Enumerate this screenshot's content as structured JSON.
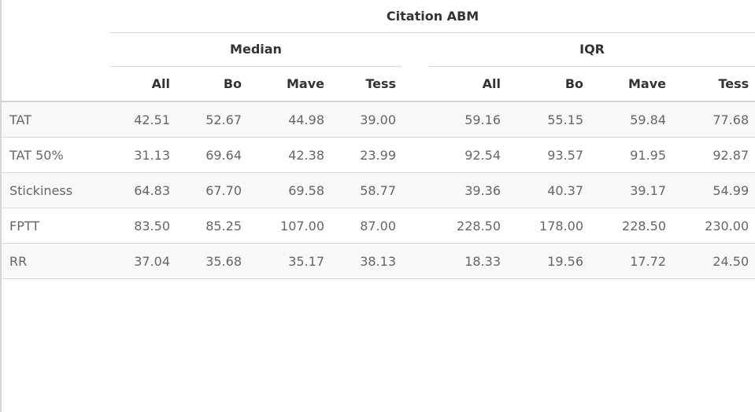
{
  "table": {
    "title": "Citation ABM",
    "groups": {
      "median": "Median",
      "iqr": "IQR"
    },
    "columns": [
      "All",
      "Bo",
      "Mave",
      "Tess",
      "All",
      "Bo",
      "Mave",
      "Tess"
    ],
    "rows": [
      {
        "label": "TAT",
        "values": [
          "42.51",
          "52.67",
          "44.98",
          "39.00",
          "59.16",
          "55.15",
          "59.84",
          "77.68"
        ]
      },
      {
        "label": "TAT 50%",
        "values": [
          "31.13",
          "69.64",
          "42.38",
          "23.99",
          "92.54",
          "93.57",
          "91.95",
          "92.87"
        ]
      },
      {
        "label": "Stickiness",
        "values": [
          "64.83",
          "67.70",
          "69.58",
          "58.77",
          "39.36",
          "40.37",
          "39.17",
          "54.99"
        ]
      },
      {
        "label": "FPTT",
        "values": [
          "83.50",
          "85.25",
          "107.00",
          "87.00",
          "228.50",
          "178.00",
          "228.50",
          "230.00"
        ]
      },
      {
        "label": "RR",
        "values": [
          "37.04",
          "35.68",
          "35.17",
          "38.13",
          "18.33",
          "19.56",
          "17.72",
          "24.50"
        ]
      }
    ]
  }
}
